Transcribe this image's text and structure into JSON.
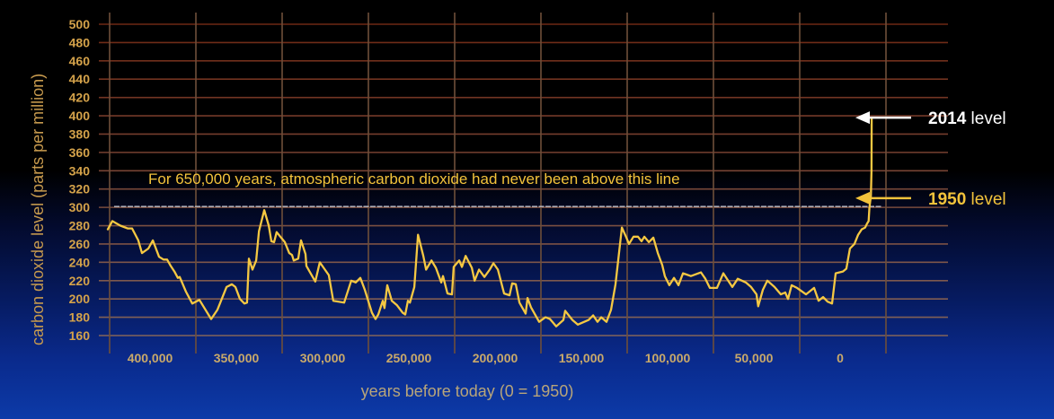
{
  "chart_data": {
    "type": "line",
    "title": "",
    "xlabel": "years before today (0 = 1950)",
    "ylabel": "carbon dioxide level (parts per million)",
    "ylim": [
      160,
      500
    ],
    "xlim": [
      425000,
      -25000
    ],
    "grid": true,
    "y_ticks": [
      500,
      480,
      460,
      440,
      420,
      400,
      380,
      360,
      340,
      320,
      300,
      280,
      260,
      240,
      220,
      200,
      180,
      160
    ],
    "x_ticks": [
      {
        "label": "400,000",
        "value": 400000
      },
      {
        "label": "350,000",
        "value": 350000
      },
      {
        "label": "300,000",
        "value": 300000
      },
      {
        "label": "250,000",
        "value": 250000
      },
      {
        "label": "200,000",
        "value": 200000
      },
      {
        "label": "150,000",
        "value": 150000
      },
      {
        "label": "100,000",
        "value": 100000
      },
      {
        "label": "50,000",
        "value": 50000
      },
      {
        "label": "0",
        "value": 0
      }
    ],
    "threshold_line": {
      "value": 300,
      "label": "For 650,000 years, atmospheric carbon dioxide had never been above this line"
    },
    "annotations": [
      {
        "year_label": "2014",
        "suffix": " level",
        "value": 398,
        "color": "#ffffff"
      },
      {
        "year_label": "1950",
        "suffix": " level",
        "value": 310,
        "color": "#f3c33b"
      }
    ],
    "series": [
      {
        "name": "atmospheric CO2",
        "color": "#f5c842",
        "points": [
          [
            424500,
            276
          ],
          [
            421900,
            285
          ],
          [
            417200,
            280
          ],
          [
            413000,
            277
          ],
          [
            410400,
            277
          ],
          [
            406800,
            264
          ],
          [
            404700,
            250
          ],
          [
            401000,
            255
          ],
          [
            398400,
            264
          ],
          [
            394800,
            246
          ],
          [
            392200,
            243
          ],
          [
            390100,
            243
          ],
          [
            388000,
            236
          ],
          [
            385900,
            230
          ],
          [
            383900,
            223
          ],
          [
            382800,
            224
          ],
          [
            379200,
            208
          ],
          [
            375500,
            195
          ],
          [
            371400,
            199
          ],
          [
            364600,
            178
          ],
          [
            361000,
            188
          ],
          [
            355700,
            213
          ],
          [
            352600,
            216
          ],
          [
            350500,
            213
          ],
          [
            347900,
            200
          ],
          [
            345300,
            195
          ],
          [
            343800,
            196
          ],
          [
            342700,
            244
          ],
          [
            340600,
            232
          ],
          [
            338500,
            242
          ],
          [
            336900,
            274
          ],
          [
            333800,
            297
          ],
          [
            331200,
            280
          ],
          [
            329700,
            263
          ],
          [
            328100,
            262
          ],
          [
            326600,
            273
          ],
          [
            324500,
            268
          ],
          [
            321900,
            262
          ],
          [
            319300,
            250
          ],
          [
            317700,
            248
          ],
          [
            316700,
            242
          ],
          [
            314100,
            244
          ],
          [
            312500,
            264
          ],
          [
            309900,
            249
          ],
          [
            309400,
            236
          ],
          [
            304200,
            219
          ],
          [
            301600,
            240
          ],
          [
            296400,
            226
          ],
          [
            293800,
            198
          ],
          [
            287500,
            196
          ],
          [
            283400,
            220
          ],
          [
            280800,
            218
          ],
          [
            278100,
            223
          ],
          [
            275500,
            210
          ],
          [
            271400,
            185
          ],
          [
            269300,
            178
          ],
          [
            267700,
            183
          ],
          [
            265100,
            198
          ],
          [
            264100,
            190
          ],
          [
            262500,
            215
          ],
          [
            259900,
            198
          ],
          [
            256800,
            193
          ],
          [
            253600,
            185
          ],
          [
            252100,
            183
          ],
          [
            250500,
            198
          ],
          [
            249400,
            196
          ],
          [
            246800,
            213
          ],
          [
            244700,
            270
          ],
          [
            241600,
            247
          ],
          [
            240000,
            232
          ],
          [
            236900,
            242
          ],
          [
            234300,
            234
          ],
          [
            231200,
            218
          ],
          [
            230200,
            225
          ],
          [
            227600,
            206
          ],
          [
            225000,
            205
          ],
          [
            224000,
            235
          ],
          [
            220800,
            242
          ],
          [
            219200,
            235
          ],
          [
            217100,
            247
          ],
          [
            213500,
            234
          ],
          [
            211900,
            220
          ],
          [
            209300,
            232
          ],
          [
            206200,
            224
          ],
          [
            203100,
            232
          ],
          [
            201000,
            239
          ],
          [
            198400,
            232
          ],
          [
            194800,
            206
          ],
          [
            191600,
            204
          ],
          [
            190100,
            217
          ],
          [
            188000,
            216
          ],
          [
            185900,
            196
          ],
          [
            182300,
            184
          ],
          [
            181200,
            201
          ],
          [
            179200,
            191
          ],
          [
            174500,
            175
          ],
          [
            170800,
            180
          ],
          [
            168200,
            178
          ],
          [
            164600,
            170
          ],
          [
            160400,
            177
          ],
          [
            159400,
            187
          ],
          [
            155200,
            177
          ],
          [
            152100,
            172
          ],
          [
            145800,
            177
          ],
          [
            143200,
            182
          ],
          [
            140600,
            175
          ],
          [
            138500,
            180
          ],
          [
            135400,
            175
          ],
          [
            132800,
            188
          ],
          [
            130200,
            216
          ],
          [
            126500,
            278
          ],
          [
            123900,
            267
          ],
          [
            122400,
            260
          ],
          [
            119800,
            268
          ],
          [
            117200,
            268
          ],
          [
            115100,
            263
          ],
          [
            113500,
            268
          ],
          [
            110900,
            262
          ],
          [
            108300,
            267
          ],
          [
            105700,
            250
          ],
          [
            103100,
            237
          ],
          [
            101600,
            225
          ],
          [
            99000,
            215
          ],
          [
            96300,
            223
          ],
          [
            93700,
            215
          ],
          [
            91100,
            228
          ],
          [
            86500,
            225
          ],
          [
            80700,
            229
          ],
          [
            78100,
            222
          ],
          [
            75500,
            212
          ],
          [
            71400,
            212
          ],
          [
            67700,
            228
          ],
          [
            62500,
            213
          ],
          [
            59400,
            222
          ],
          [
            54700,
            218
          ],
          [
            51600,
            213
          ],
          [
            48500,
            205
          ],
          [
            47500,
            192
          ],
          [
            44800,
            210
          ],
          [
            42200,
            220
          ],
          [
            38000,
            213
          ],
          [
            34400,
            205
          ],
          [
            31800,
            207
          ],
          [
            30200,
            200
          ],
          [
            28100,
            215
          ],
          [
            25000,
            212
          ],
          [
            19800,
            205
          ],
          [
            15100,
            212
          ],
          [
            12500,
            198
          ],
          [
            9900,
            202
          ],
          [
            7300,
            197
          ],
          [
            4700,
            195
          ],
          [
            2600,
            228
          ],
          [
            -1600,
            230
          ],
          [
            -3600,
            233
          ],
          [
            -5700,
            255
          ],
          [
            -8300,
            260
          ],
          [
            -10400,
            270
          ],
          [
            -12500,
            276
          ],
          [
            -13500,
            277
          ],
          [
            -14500,
            278
          ],
          [
            -15500,
            282
          ],
          [
            -16500,
            285
          ],
          [
            -17000,
            300
          ],
          [
            -17800,
            312
          ],
          [
            -18200,
            340
          ],
          [
            -18300,
            398
          ]
        ]
      }
    ]
  }
}
